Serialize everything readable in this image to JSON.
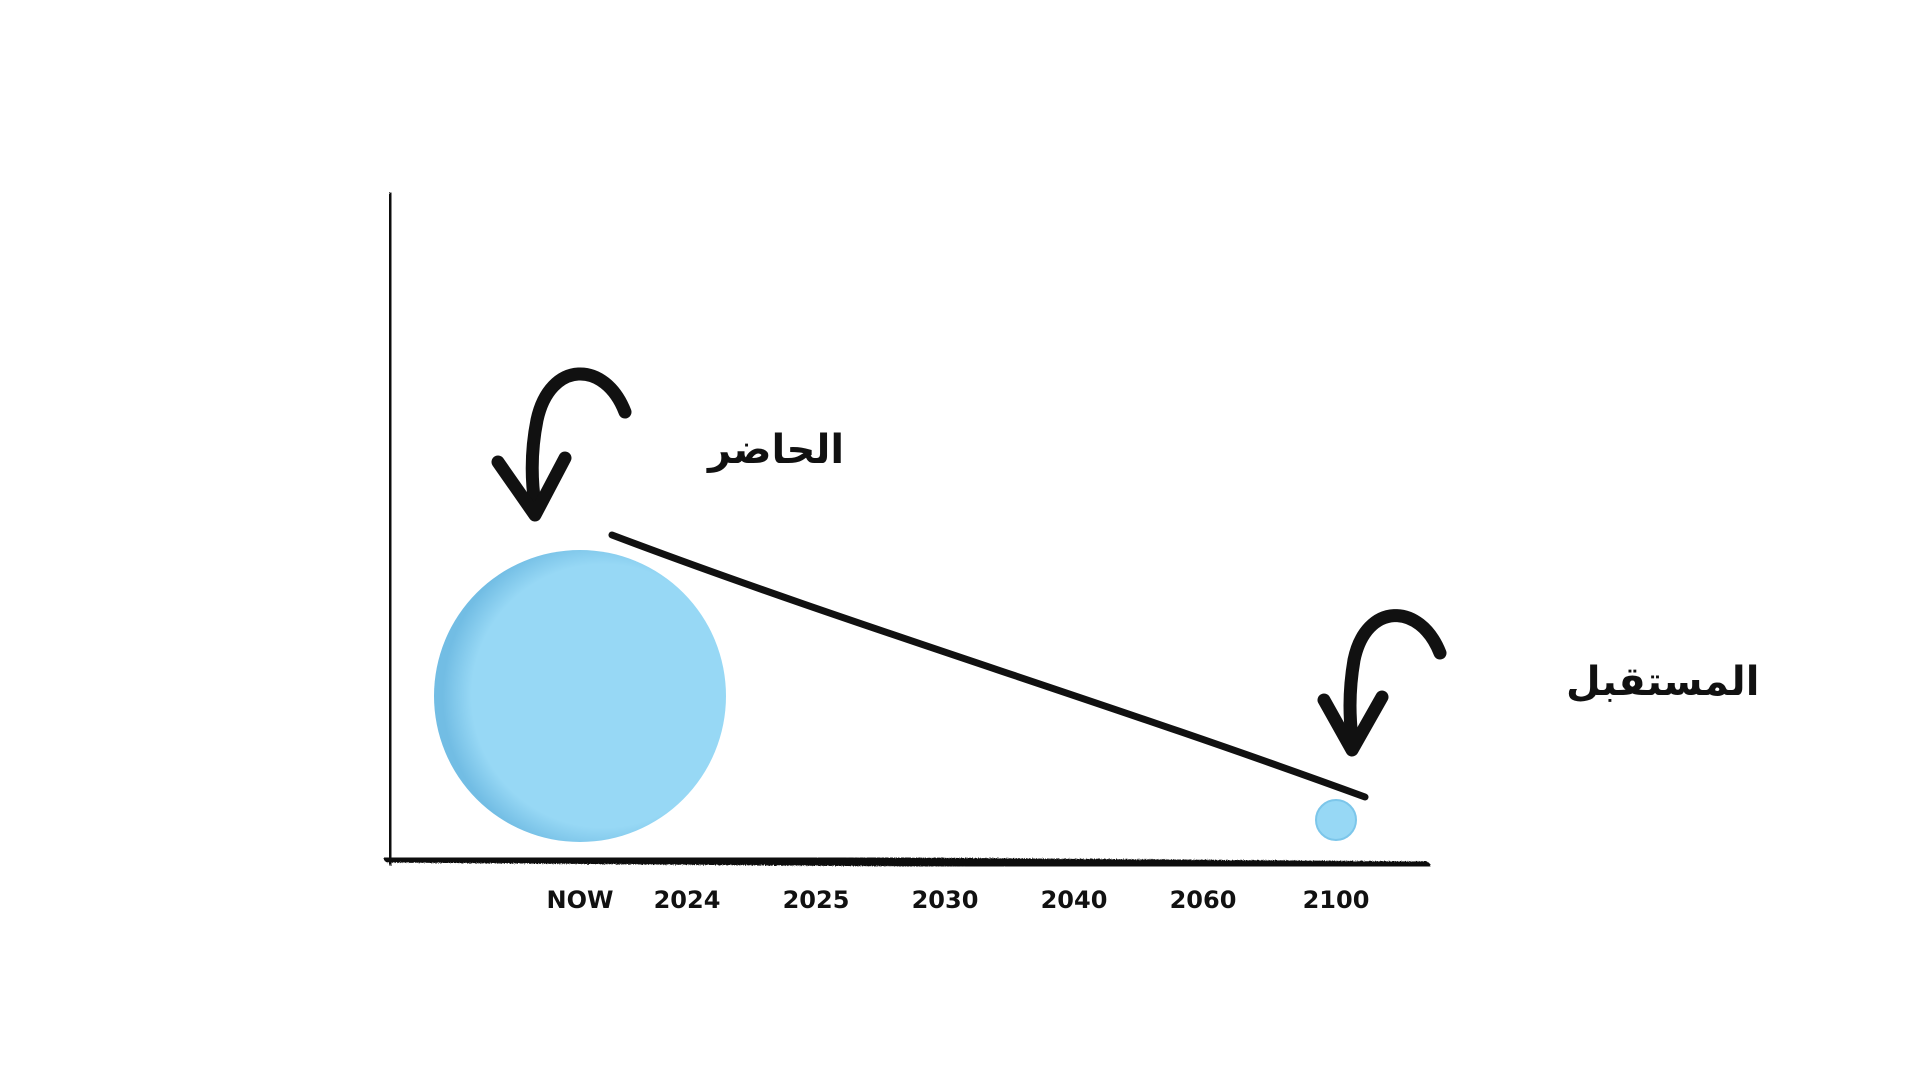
{
  "chart_data": {
    "type": "scatter",
    "categories": [
      "NOW",
      "2024",
      "2025",
      "2030",
      "2040",
      "2060",
      "2100"
    ],
    "points": [
      {
        "x": "NOW",
        "size": 1.0
      },
      {
        "x": "2100",
        "size": 0.14
      }
    ],
    "annotations": [
      {
        "text": "الحاضر",
        "target": "NOW"
      },
      {
        "text": "المستقبل",
        "target": "2100"
      }
    ],
    "trend": {
      "from": "NOW",
      "to": "2100",
      "direction": "decreasing"
    },
    "grid": false,
    "legend": "none",
    "colors": {
      "bubble": "#97d8f5",
      "bubble_shade": "#72bde4",
      "ink": "#111111"
    }
  }
}
